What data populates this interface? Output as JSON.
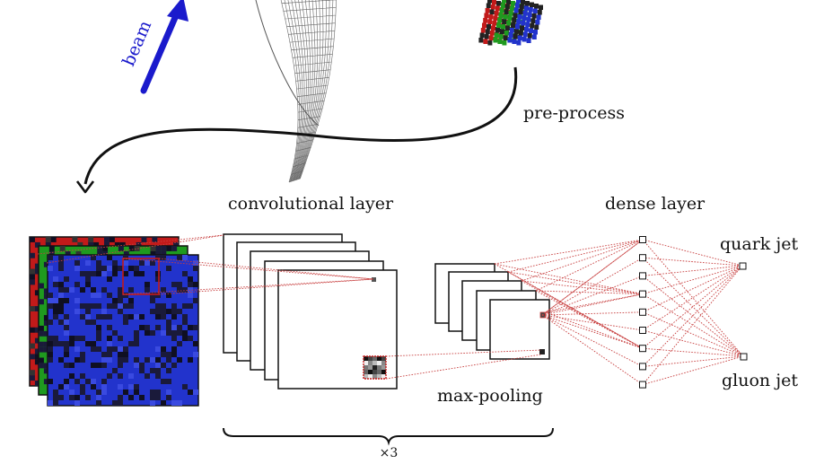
{
  "labels": {
    "beam": "beam",
    "preprocess": "pre-process",
    "conv_layer": "convolutional layer",
    "dense_layer": "dense layer",
    "max_pooling": "max-pooling",
    "quark_jet": "quark jet",
    "gluon_jet": "gluon jet",
    "repeat": "×3"
  },
  "colors": {
    "beam": "#1a1acc",
    "red_channel": "#c21a1a",
    "green_channel": "#1f9a1f",
    "blue_channel": "#2233cc",
    "connection": "#c84040",
    "ink": "#111111"
  },
  "network": {
    "dense_nodes": 9,
    "output_nodes": 2,
    "conv_maps": 5,
    "pool_maps": 5
  }
}
